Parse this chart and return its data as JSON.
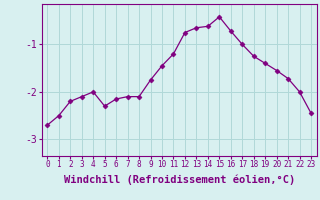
{
  "x": [
    0,
    1,
    2,
    3,
    4,
    5,
    6,
    7,
    8,
    9,
    10,
    11,
    12,
    13,
    14,
    15,
    16,
    17,
    18,
    19,
    20,
    21,
    22,
    23
  ],
  "y": [
    -2.7,
    -2.5,
    -2.2,
    -2.1,
    -2.0,
    -2.3,
    -2.15,
    -2.1,
    -2.1,
    -1.75,
    -1.45,
    -1.2,
    -0.75,
    -0.65,
    -0.62,
    -0.42,
    -0.72,
    -1.0,
    -1.25,
    -1.4,
    -1.55,
    -1.72,
    -2.0,
    -2.45
  ],
  "line_color": "#800080",
  "marker": "D",
  "marker_size": 2.5,
  "bg_color": "#d8f0f0",
  "grid_color": "#b0d8d8",
  "axis_color": "#800080",
  "tick_color": "#800080",
  "xlabel": "Windchill (Refroidissement éolien,°C)",
  "xlabel_fontsize": 7.5,
  "yticks": [
    -3,
    -2,
    -1
  ],
  "ytick_labels": [
    "-3",
    "-2",
    "-1"
  ],
  "ylim": [
    -3.35,
    -0.15
  ],
  "xlim": [
    -0.5,
    23.5
  ],
  "xtick_fontsize": 5.5,
  "ytick_fontsize": 7.0
}
